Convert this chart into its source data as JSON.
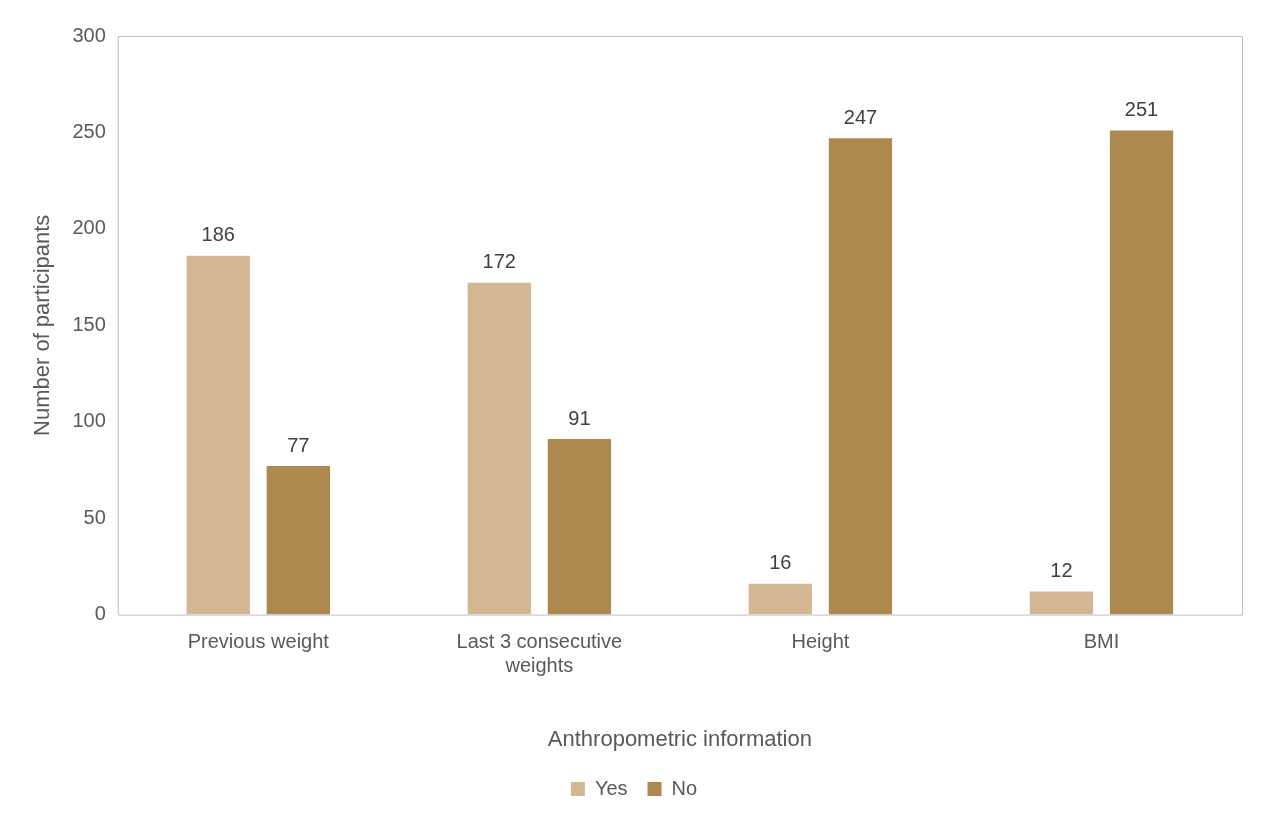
{
  "chart_data": {
    "type": "bar",
    "xlabel": "Anthropometric information",
    "ylabel": "Number of participants",
    "categories": [
      "Previous weight",
      "Last 3 consecutive weights",
      "Height",
      "BMI"
    ],
    "series": [
      {
        "name": "Yes",
        "color": "#d3b794",
        "values": [
          186,
          172,
          16,
          12
        ]
      },
      {
        "name": "No",
        "color": "#ad884f",
        "values": [
          77,
          91,
          247,
          251
        ]
      }
    ],
    "ylim": [
      0,
      300
    ],
    "yticks": [
      0,
      50,
      100,
      150,
      200,
      250,
      300
    ],
    "data_labels": true,
    "legend": "bottom"
  }
}
